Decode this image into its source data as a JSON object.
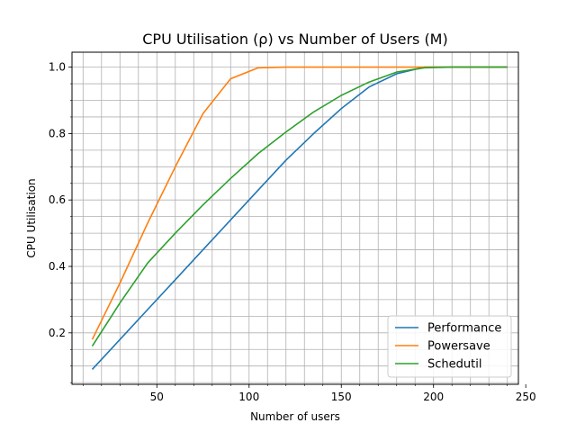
{
  "chart_data": {
    "type": "line",
    "title": "CPU Utilisation (ρ) vs Number of Users (M)",
    "xlabel": "Number of users",
    "ylabel": "CPU Utilisation",
    "xlim": [
      4,
      246
    ],
    "ylim": [
      0.045,
      1.045
    ],
    "xticks": [
      50,
      100,
      150,
      200,
      250
    ],
    "yticks": [
      0.2,
      0.4,
      0.6,
      0.8,
      1.0
    ],
    "xtick_labels": [
      "50",
      "100",
      "150",
      "200",
      "250"
    ],
    "ytick_labels": [
      "0.2",
      "0.4",
      "0.6",
      "0.8",
      "1.0"
    ],
    "x_minor_step": 10,
    "y_minor_step": 0.05,
    "grid": "major and minor",
    "legend_position": "lower-right",
    "series": [
      {
        "name": "Performance",
        "color": "#1f77b4",
        "x": [
          15,
          30,
          45,
          60,
          75,
          90,
          105,
          120,
          135,
          150,
          165,
          180,
          195,
          210,
          225,
          240
        ],
        "y": [
          0.09,
          0.18,
          0.27,
          0.36,
          0.45,
          0.54,
          0.63,
          0.72,
          0.8,
          0.875,
          0.94,
          0.98,
          1.0,
          1.0,
          1.0,
          1.0
        ]
      },
      {
        "name": "Powersave",
        "color": "#ff7f0e",
        "x": [
          15,
          30,
          45,
          60,
          75,
          90,
          105,
          120,
          135,
          150,
          165,
          180,
          195,
          210,
          225,
          240
        ],
        "y": [
          0.18,
          0.35,
          0.53,
          0.7,
          0.86,
          0.965,
          0.998,
          1.0,
          1.0,
          1.0,
          1.0,
          1.0,
          1.0,
          1.0,
          1.0,
          1.0
        ]
      },
      {
        "name": "Schedutil",
        "color": "#2ca02c",
        "x": [
          15,
          30,
          45,
          60,
          75,
          90,
          105,
          120,
          135,
          150,
          165,
          180,
          195,
          210,
          225,
          240
        ],
        "y": [
          0.16,
          0.29,
          0.41,
          0.5,
          0.585,
          0.665,
          0.74,
          0.805,
          0.865,
          0.915,
          0.955,
          0.985,
          0.998,
          1.0,
          1.0,
          1.0
        ]
      }
    ]
  }
}
